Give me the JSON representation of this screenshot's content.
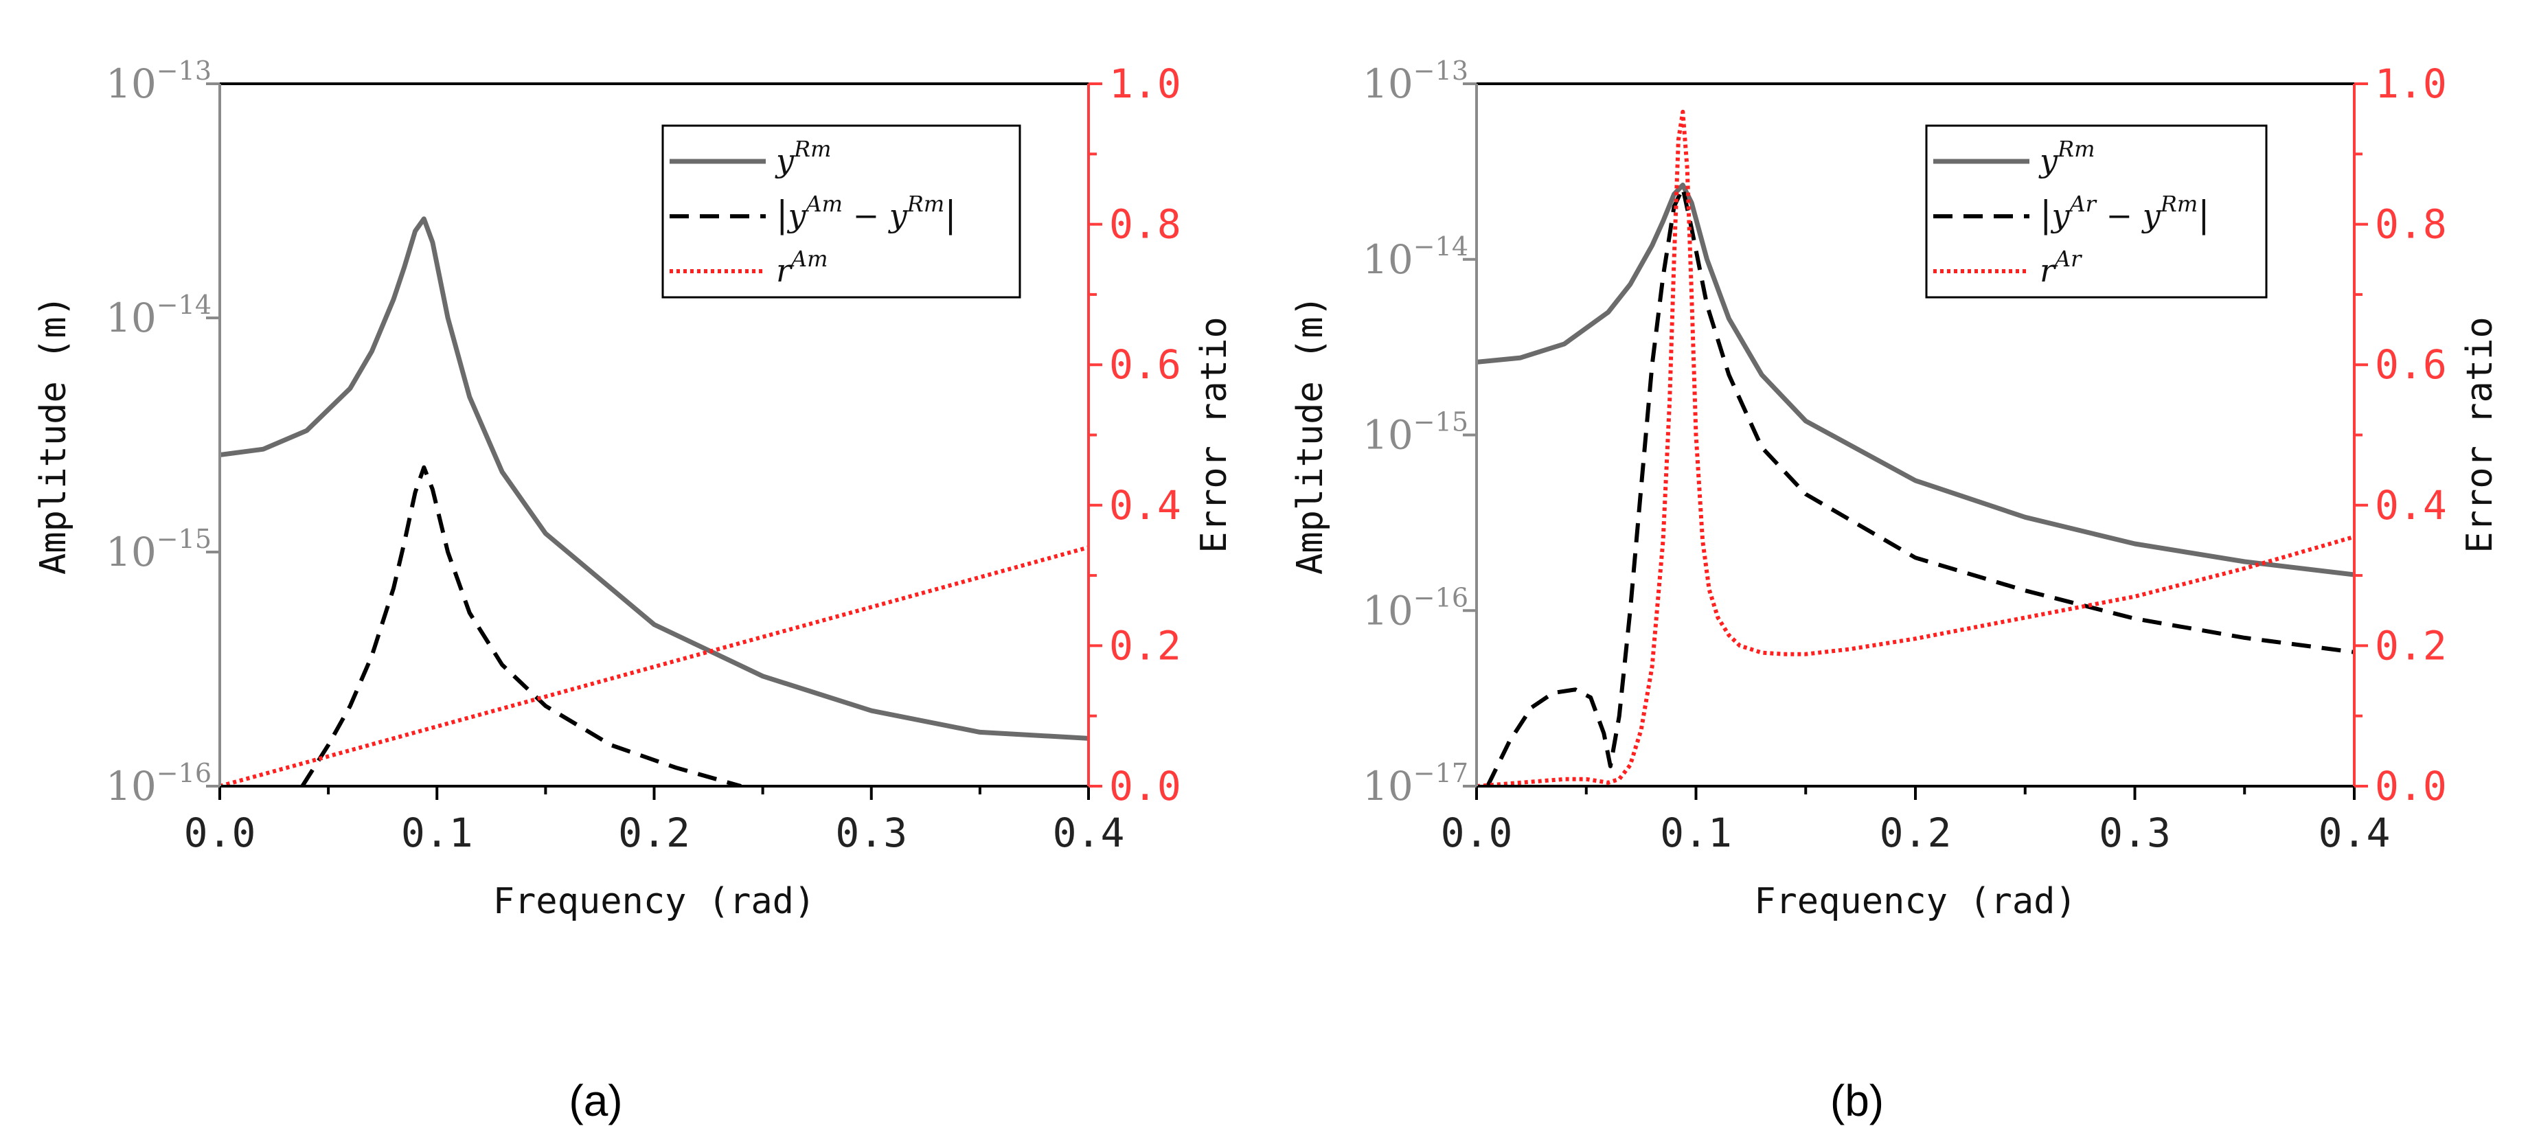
{
  "colors": {
    "yRm": "#6b6b6b",
    "diff": "#000000",
    "ratio": "#ff2020",
    "left_axis": "#8a8a8a",
    "right_axis": "#ff3b3b",
    "frame": "#000000"
  },
  "chart_data": [
    {
      "type": "line",
      "caption": "(a)",
      "xlabel": "Frequency (rad)",
      "ylabel_left": "Amplitude (m)",
      "ylabel_right": "Error ratio",
      "xlim": [
        0.0,
        0.4
      ],
      "x_ticks": [
        "0.0",
        "0.1",
        "0.2",
        "0.3",
        "0.4"
      ],
      "ylim_left_log10": [
        -16,
        -13
      ],
      "y_left_ticks": [
        {
          "base": "10",
          "exp": "−13"
        },
        {
          "base": "10",
          "exp": "−14"
        },
        {
          "base": "10",
          "exp": "−15"
        },
        {
          "base": "10",
          "exp": "−16"
        }
      ],
      "ylim_right": [
        0.0,
        1.0
      ],
      "y_right_ticks": [
        "0.0",
        "0.2",
        "0.4",
        "0.6",
        "0.8",
        "1.0"
      ],
      "legend": [
        {
          "base": "y",
          "sup": "Rm",
          "abs": false,
          "minus_base": "",
          "minus_sup": ""
        },
        {
          "base": "y",
          "sup": "Am",
          "abs": true,
          "minus_base": "y",
          "minus_sup": "Rm"
        },
        {
          "base": "r",
          "sup": "Am",
          "abs": false,
          "minus_base": "",
          "minus_sup": ""
        }
      ],
      "series": [
        {
          "name": "y^Rm",
          "axis": "left",
          "style": "solid",
          "x": [
            0.0,
            0.02,
            0.04,
            0.06,
            0.07,
            0.08,
            0.085,
            0.09,
            0.094,
            0.098,
            0.105,
            0.115,
            0.13,
            0.15,
            0.2,
            0.25,
            0.3,
            0.35,
            0.4
          ],
          "y": [
            2.6e-15,
            2.75e-15,
            3.3e-15,
            5e-15,
            7.2e-15,
            1.2e-14,
            1.65e-14,
            2.35e-14,
            2.65e-14,
            2.1e-14,
            1e-14,
            4.6e-15,
            2.2e-15,
            1.2e-15,
            4.9e-16,
            2.95e-16,
            2.1e-16,
            1.7e-16,
            1.6e-16
          ]
        },
        {
          "name": "|y^Am - y^Rm|",
          "axis": "left",
          "style": "dashed",
          "x": [
            0.038,
            0.05,
            0.06,
            0.07,
            0.08,
            0.085,
            0.09,
            0.094,
            0.098,
            0.105,
            0.115,
            0.13,
            0.15,
            0.18,
            0.21,
            0.24
          ],
          "y": [
            1e-16,
            1.5e-16,
            2.2e-16,
            3.6e-16,
            7e-16,
            1.1e-15,
            1.8e-15,
            2.3e-15,
            1.85e-15,
            1e-15,
            5.5e-16,
            3.3e-16,
            2.2e-16,
            1.5e-16,
            1.2e-16,
            1e-16
          ]
        },
        {
          "name": "r^Am",
          "axis": "right",
          "style": "dotted",
          "x": [
            0.0,
            0.4
          ],
          "y": [
            0.0,
            0.34
          ]
        }
      ]
    },
    {
      "type": "line",
      "caption": "(b)",
      "xlabel": "Frequency (rad)",
      "ylabel_left": "Amplitude (m)",
      "ylabel_right": "Error ratio",
      "xlim": [
        0.0,
        0.4
      ],
      "x_ticks": [
        "0.0",
        "0.1",
        "0.2",
        "0.3",
        "0.4"
      ],
      "ylim_left_log10": [
        -17,
        -13
      ],
      "y_left_ticks": [
        {
          "base": "10",
          "exp": "−13"
        },
        {
          "base": "10",
          "exp": "−14"
        },
        {
          "base": "10",
          "exp": "−15"
        },
        {
          "base": "10",
          "exp": "−16"
        },
        {
          "base": "10",
          "exp": "−17"
        }
      ],
      "ylim_right": [
        0.0,
        1.0
      ],
      "y_right_ticks": [
        "0.0",
        "0.2",
        "0.4",
        "0.6",
        "0.8",
        "1.0"
      ],
      "legend": [
        {
          "base": "y",
          "sup": "Rm",
          "abs": false,
          "minus_base": "",
          "minus_sup": ""
        },
        {
          "base": "y",
          "sup": "Ar",
          "abs": true,
          "minus_base": "y",
          "minus_sup": "Rm"
        },
        {
          "base": "r",
          "sup": "Ar",
          "abs": false,
          "minus_base": "",
          "minus_sup": ""
        }
      ],
      "series": [
        {
          "name": "y^Rm",
          "axis": "left",
          "style": "solid",
          "x": [
            0.0,
            0.02,
            0.04,
            0.06,
            0.07,
            0.08,
            0.085,
            0.09,
            0.094,
            0.098,
            0.105,
            0.115,
            0.13,
            0.15,
            0.2,
            0.25,
            0.3,
            0.35,
            0.4
          ],
          "y": [
            2.6e-15,
            2.75e-15,
            3.3e-15,
            5e-15,
            7.2e-15,
            1.2e-14,
            1.65e-14,
            2.35e-14,
            2.65e-14,
            2.1e-14,
            1e-14,
            4.6e-15,
            2.2e-15,
            1.2e-15,
            5.5e-16,
            3.4e-16,
            2.4e-16,
            1.9e-16,
            1.6e-16
          ]
        },
        {
          "name": "|y^Ar - y^Rm|",
          "axis": "left",
          "style": "dashed",
          "x": [
            0.005,
            0.015,
            0.025,
            0.035,
            0.045,
            0.052,
            0.058,
            0.061,
            0.065,
            0.07,
            0.075,
            0.08,
            0.085,
            0.09,
            0.094,
            0.098,
            0.105,
            0.115,
            0.13,
            0.15,
            0.2,
            0.25,
            0.3,
            0.35,
            0.4
          ],
          "y": [
            1e-17,
            1.8e-17,
            2.8e-17,
            3.4e-17,
            3.55e-17,
            3.2e-17,
            2e-17,
            1.3e-17,
            2.5e-17,
            1e-16,
            5e-16,
            2.5e-15,
            8e-15,
            2e-14,
            2.55e-14,
            1.5e-14,
            5.5e-15,
            2.2e-15,
            8.5e-16,
            4.6e-16,
            2e-16,
            1.3e-16,
            9e-17,
            7e-17,
            5.8e-17
          ]
        },
        {
          "name": "r^Ar",
          "axis": "right",
          "style": "dotted",
          "x": [
            0.0,
            0.02,
            0.04,
            0.05,
            0.06,
            0.065,
            0.07,
            0.075,
            0.08,
            0.085,
            0.088,
            0.09,
            0.092,
            0.094,
            0.096,
            0.098,
            0.1,
            0.103,
            0.106,
            0.11,
            0.115,
            0.12,
            0.13,
            0.14,
            0.15,
            0.17,
            0.2,
            0.25,
            0.3,
            0.35,
            0.4
          ],
          "y": [
            0.0,
            0.005,
            0.01,
            0.01,
            0.005,
            0.01,
            0.03,
            0.08,
            0.17,
            0.35,
            0.55,
            0.75,
            0.92,
            0.96,
            0.88,
            0.7,
            0.5,
            0.35,
            0.28,
            0.24,
            0.215,
            0.2,
            0.19,
            0.188,
            0.188,
            0.195,
            0.21,
            0.24,
            0.27,
            0.31,
            0.355
          ]
        }
      ]
    }
  ]
}
